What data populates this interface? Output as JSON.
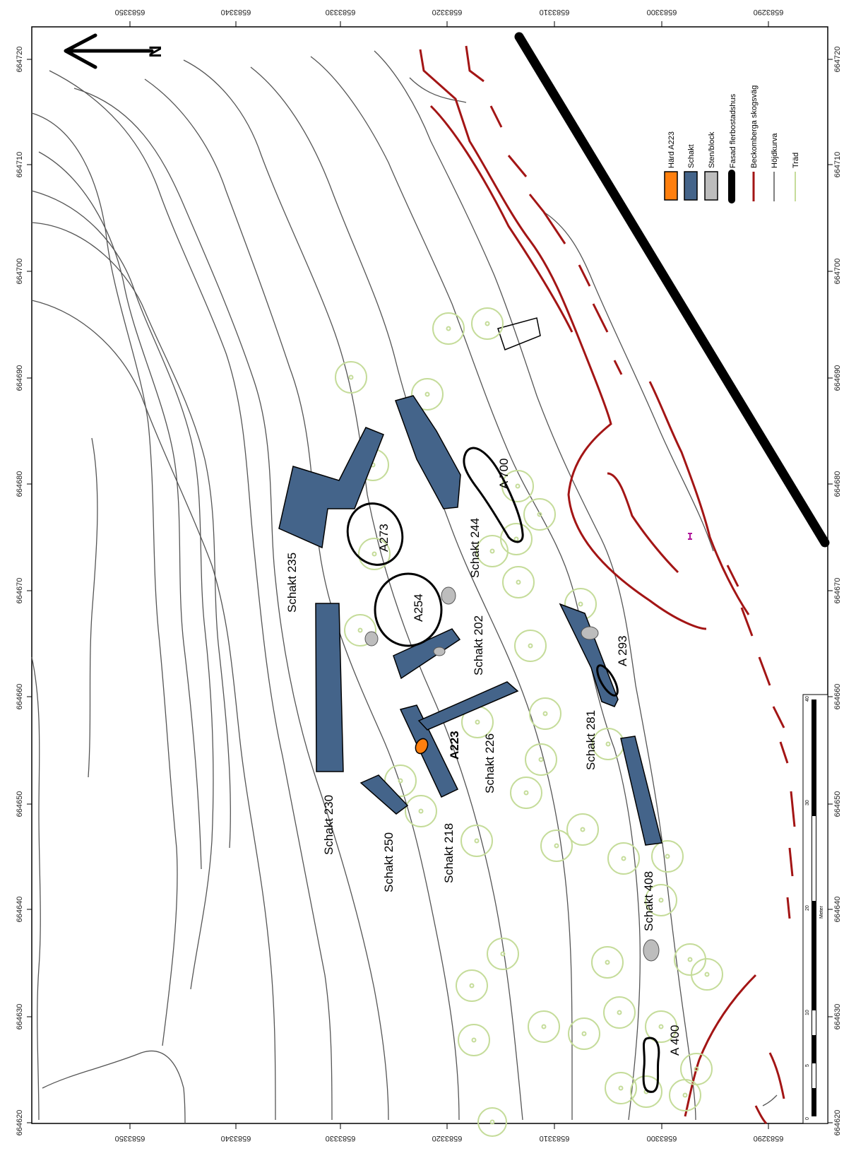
{
  "map": {
    "north_label": "N",
    "x_ticks": [
      "664620",
      "664630",
      "664640",
      "664650",
      "664660",
      "664670",
      "664680",
      "664690",
      "664700",
      "664710",
      "664720"
    ],
    "y_ticks": [
      "6583350",
      "6583340",
      "6583330",
      "6583320",
      "6583310",
      "6583300",
      "6583290"
    ],
    "features": {
      "schakt_235": "Schakt 235",
      "schakt_244": "Schakt 244",
      "schakt_202": "Schakt 202",
      "schakt_230": "Schakt 230",
      "schakt_250": "Schakt 250",
      "schakt_218": "Schakt 218",
      "schakt_226": "Schakt 226",
      "schakt_281": "Schakt 281",
      "schakt_408": "Schakt 408",
      "a273": "A273",
      "a254": "A254",
      "a700": "A 700",
      "a223": "A223",
      "a293": "A 293",
      "a400": "A 400"
    },
    "legend": {
      "items": [
        {
          "label": "Härd A223",
          "color": "#ff7f0e"
        },
        {
          "label": "Schakt",
          "color": "#44648a"
        },
        {
          "label": "Sten/block",
          "color": "#bdbdbd"
        },
        {
          "label": "Fasad flerbostadshus",
          "color": "#000000"
        },
        {
          "label": "Beckomberga skogsväg",
          "color": "#a31515"
        },
        {
          "label": "Höjdkurva",
          "color": "#555555"
        },
        {
          "label": "Träd",
          "color": "#c5dc9a"
        }
      ]
    },
    "scale_bar": {
      "ticks": [
        "0",
        "5",
        "10",
        "20",
        "30",
        "40"
      ],
      "unit": "Meter"
    }
  }
}
